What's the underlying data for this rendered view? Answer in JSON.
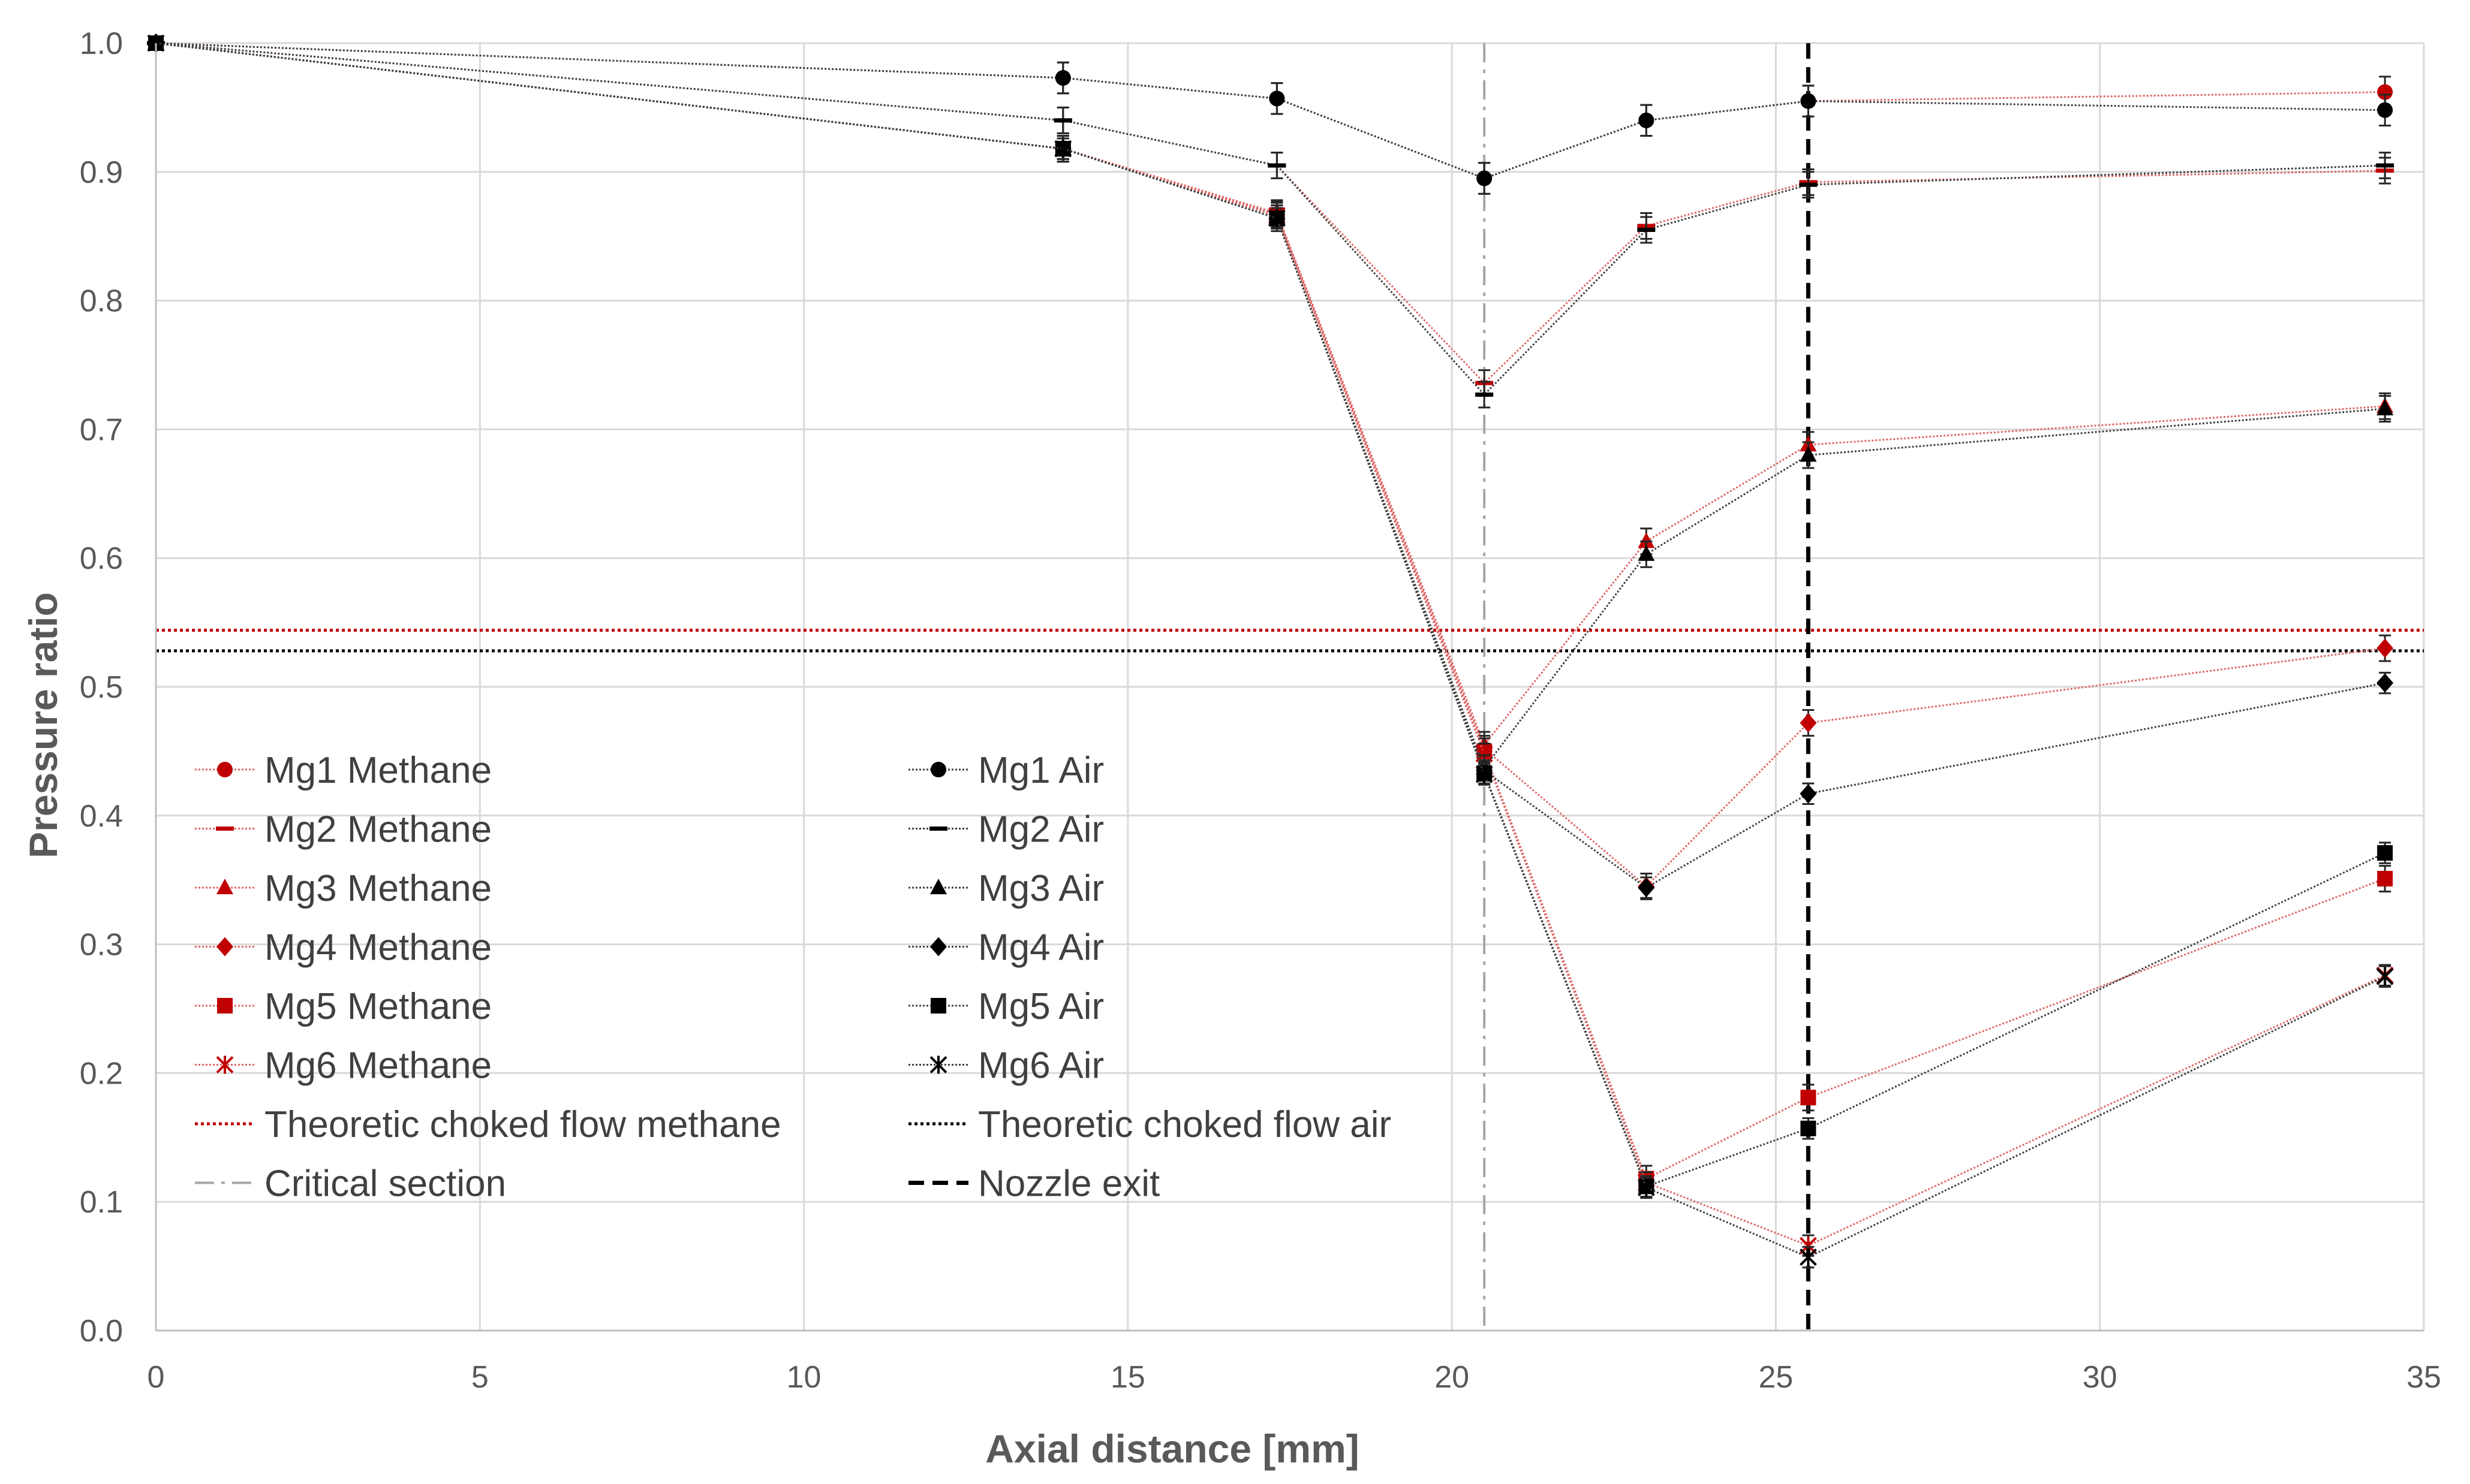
{
  "chart_data": {
    "type": "line",
    "xlabel": "Axial distance [mm]",
    "ylabel": "Pressure ratio",
    "xlim": [
      0,
      35
    ],
    "ylim": [
      0,
      1.0
    ],
    "x_ticks": [
      "0",
      "5",
      "10",
      "15",
      "20",
      "25",
      "30",
      "35"
    ],
    "y_ticks": [
      "0.0",
      "0.1",
      "0.2",
      "0.3",
      "0.4",
      "0.5",
      "0.6",
      "0.7",
      "0.8",
      "0.9",
      "1.0"
    ],
    "grid": true,
    "legend_position": "left-lower inside plot, two columns",
    "x": [
      0,
      14,
      17.3,
      20.5,
      23,
      25.5,
      34.4
    ],
    "series": [
      {
        "name": "Mg1 Methane",
        "color": "#c00000",
        "marker": "circle",
        "values": [
          1.0,
          0.973,
          0.957,
          0.895,
          0.94,
          0.955,
          0.962
        ],
        "err": 0.012
      },
      {
        "name": "Mg2 Methane",
        "color": "#c00000",
        "marker": "dash",
        "values": [
          1.0,
          0.94,
          0.905,
          0.736,
          0.858,
          0.892,
          0.901
        ],
        "err": 0.01
      },
      {
        "name": "Mg3 Methane",
        "color": "#c00000",
        "marker": "triangle",
        "values": [
          1.0,
          0.918,
          0.868,
          0.455,
          0.613,
          0.688,
          0.718
        ],
        "err": 0.01
      },
      {
        "name": "Mg4 Methane",
        "color": "#c00000",
        "marker": "diamond",
        "values": [
          1.0,
          0.918,
          0.867,
          0.452,
          0.345,
          0.472,
          0.53
        ],
        "err": 0.01
      },
      {
        "name": "Mg5 Methane",
        "color": "#c00000",
        "marker": "square",
        "values": [
          1.0,
          0.918,
          0.866,
          0.45,
          0.118,
          0.181,
          0.351
        ],
        "err": 0.01
      },
      {
        "name": "Mg6 Methane",
        "color": "#c00000",
        "marker": "star",
        "values": [
          1.0,
          0.918,
          0.866,
          0.448,
          0.115,
          0.066,
          0.276
        ],
        "err": 0.008
      },
      {
        "name": "Mg1 Air",
        "color": "#000000",
        "marker": "circle",
        "values": [
          1.0,
          0.973,
          0.957,
          0.895,
          0.94,
          0.955,
          0.948
        ],
        "err": 0.012
      },
      {
        "name": "Mg2 Air",
        "color": "#000000",
        "marker": "dash",
        "values": [
          1.0,
          0.94,
          0.905,
          0.727,
          0.855,
          0.89,
          0.905
        ],
        "err": 0.01
      },
      {
        "name": "Mg3 Air",
        "color": "#000000",
        "marker": "triangle",
        "values": [
          1.0,
          0.918,
          0.864,
          0.437,
          0.603,
          0.68,
          0.716
        ],
        "err": 0.01
      },
      {
        "name": "Mg4 Air",
        "color": "#000000",
        "marker": "diamond",
        "values": [
          1.0,
          0.918,
          0.864,
          0.435,
          0.344,
          0.417,
          0.503
        ],
        "err": 0.008
      },
      {
        "name": "Mg5 Air",
        "color": "#000000",
        "marker": "square",
        "values": [
          1.0,
          0.918,
          0.864,
          0.433,
          0.112,
          0.157,
          0.371
        ],
        "err": 0.008
      },
      {
        "name": "Mg6 Air",
        "color": "#000000",
        "marker": "star",
        "values": [
          1.0,
          0.918,
          0.864,
          0.432,
          0.111,
          0.057,
          0.275
        ],
        "err": 0.008
      }
    ],
    "reference_lines": [
      {
        "name": "Theoretic choked flow methane",
        "orientation": "horizontal",
        "value": 0.544,
        "color": "#c00000",
        "style": "dotted"
      },
      {
        "name": "Theoretic choked flow air",
        "orientation": "horizontal",
        "value": 0.528,
        "color": "#000000",
        "style": "dotted"
      },
      {
        "name": "Critical section",
        "orientation": "vertical",
        "value": 20.5,
        "color": "#a6a6a6",
        "style": "dashdot"
      },
      {
        "name": "Nozzle exit",
        "orientation": "vertical",
        "value": 25.5,
        "color": "#000000",
        "style": "dashed"
      }
    ]
  }
}
